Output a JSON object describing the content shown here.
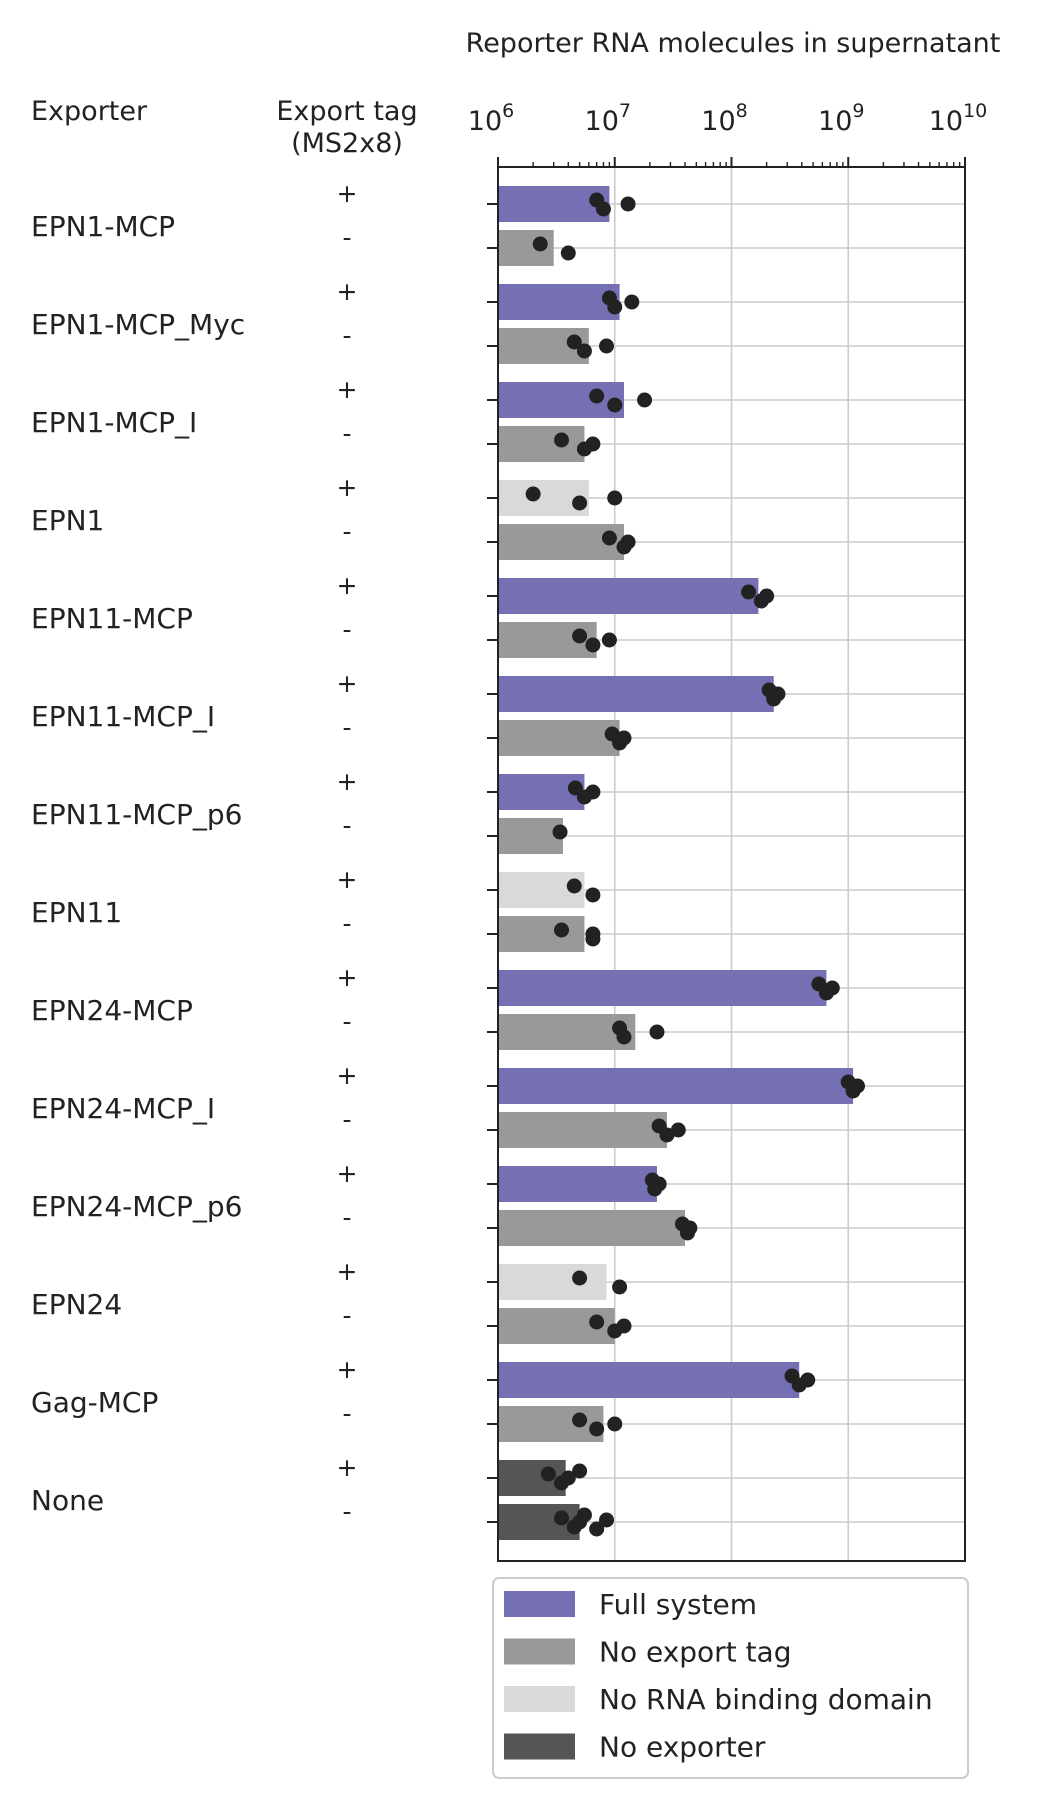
{
  "chart_data": {
    "type": "bar",
    "orientation": "horizontal",
    "title": "Reporter RNA molecules in supernatant",
    "row_header_left": "Exporter",
    "row_header_tag": [
      "Export tag",
      "(MS2x8)"
    ],
    "x_scale": "log",
    "xlim": [
      1000000,
      10000000000
    ],
    "x_tick_values": [
      1000000,
      10000000,
      100000000,
      1000000000,
      10000000000
    ],
    "x_tick_labels": [
      {
        "base": "10",
        "exp": "6"
      },
      {
        "base": "10",
        "exp": "7"
      },
      {
        "base": "10",
        "exp": "8"
      },
      {
        "base": "10",
        "exp": "9"
      },
      {
        "base": "10",
        "exp": "10"
      }
    ],
    "grid": true,
    "legend_position": "bottom",
    "legend": [
      {
        "key": "full",
        "label": "Full system",
        "color": "#7570b3"
      },
      {
        "key": "notag",
        "label": "No export tag",
        "color": "#999999"
      },
      {
        "key": "nordb",
        "label": "No RNA binding domain",
        "color": "#d9d9d9"
      },
      {
        "key": "noexp",
        "label": "No exporter",
        "color": "#555555"
      }
    ],
    "point_color": "#222222",
    "groups": [
      {
        "exporter": "EPN1-MCP",
        "bars": [
          {
            "tag": "+",
            "category": "full",
            "value": 9000000,
            "points": [
              7000000,
              8000000,
              13000000
            ]
          },
          {
            "tag": "-",
            "category": "notag",
            "value": 3000000,
            "points": [
              2300000,
              4000000
            ]
          }
        ]
      },
      {
        "exporter": "EPN1-MCP_Myc",
        "bars": [
          {
            "tag": "+",
            "category": "full",
            "value": 11000000,
            "points": [
              9000000,
              10000000,
              14000000
            ]
          },
          {
            "tag": "-",
            "category": "notag",
            "value": 6000000,
            "points": [
              4500000,
              5500000,
              8500000
            ]
          }
        ]
      },
      {
        "exporter": "EPN1-MCP_I",
        "bars": [
          {
            "tag": "+",
            "category": "full",
            "value": 12000000,
            "points": [
              7000000,
              10000000,
              18000000
            ]
          },
          {
            "tag": "-",
            "category": "notag",
            "value": 5500000,
            "points": [
              3500000,
              5500000,
              6500000
            ]
          }
        ]
      },
      {
        "exporter": "EPN1",
        "bars": [
          {
            "tag": "+",
            "category": "nordb",
            "value": 6000000,
            "points": [
              2000000,
              5000000,
              10000000
            ]
          },
          {
            "tag": "-",
            "category": "notag",
            "value": 12000000,
            "points": [
              9000000,
              12000000,
              13000000
            ]
          }
        ]
      },
      {
        "exporter": "EPN11-MCP",
        "bars": [
          {
            "tag": "+",
            "category": "full",
            "value": 170000000,
            "points": [
              140000000,
              180000000,
              200000000
            ]
          },
          {
            "tag": "-",
            "category": "notag",
            "value": 7000000,
            "points": [
              5000000,
              6500000,
              9000000
            ]
          }
        ]
      },
      {
        "exporter": "EPN11-MCP_I",
        "bars": [
          {
            "tag": "+",
            "category": "full",
            "value": 230000000,
            "points": [
              210000000,
              230000000,
              250000000
            ]
          },
          {
            "tag": "-",
            "category": "notag",
            "value": 11000000,
            "points": [
              9500000,
              11000000,
              12000000
            ]
          }
        ]
      },
      {
        "exporter": "EPN11-MCP_p6",
        "bars": [
          {
            "tag": "+",
            "category": "full",
            "value": 5500000,
            "points": [
              4600000,
              5500000,
              6500000
            ]
          },
          {
            "tag": "-",
            "category": "notag",
            "value": 3600000,
            "points": [
              3400000
            ]
          }
        ]
      },
      {
        "exporter": "EPN11",
        "bars": [
          {
            "tag": "+",
            "category": "nordb",
            "value": 5500000,
            "points": [
              4500000,
              6500000
            ]
          },
          {
            "tag": "-",
            "category": "notag",
            "value": 5500000,
            "points": [
              3500000,
              6500000,
              6500000
            ]
          }
        ]
      },
      {
        "exporter": "EPN24-MCP",
        "bars": [
          {
            "tag": "+",
            "category": "full",
            "value": 650000000,
            "points": [
              560000000,
              650000000,
              730000000
            ]
          },
          {
            "tag": "-",
            "category": "notag",
            "value": 15000000,
            "points": [
              11000000,
              12000000,
              23000000
            ]
          }
        ]
      },
      {
        "exporter": "EPN24-MCP_I",
        "bars": [
          {
            "tag": "+",
            "category": "full",
            "value": 1100000000,
            "points": [
              1000000000,
              1100000000,
              1200000000
            ]
          },
          {
            "tag": "-",
            "category": "notag",
            "value": 28000000,
            "points": [
              24000000,
              28000000,
              35000000
            ]
          }
        ]
      },
      {
        "exporter": "EPN24-MCP_p6",
        "bars": [
          {
            "tag": "+",
            "category": "full",
            "value": 23000000,
            "points": [
              21000000,
              22000000,
              24000000
            ]
          },
          {
            "tag": "-",
            "category": "notag",
            "value": 40000000,
            "points": [
              38000000,
              42000000,
              44000000
            ]
          }
        ]
      },
      {
        "exporter": "EPN24",
        "bars": [
          {
            "tag": "+",
            "category": "nordb",
            "value": 8500000,
            "points": [
              5000000,
              11000000
            ]
          },
          {
            "tag": "-",
            "category": "notag",
            "value": 10000000,
            "points": [
              7000000,
              10000000,
              12000000
            ]
          }
        ]
      },
      {
        "exporter": "Gag-MCP",
        "bars": [
          {
            "tag": "+",
            "category": "full",
            "value": 380000000,
            "points": [
              330000000,
              380000000,
              450000000
            ]
          },
          {
            "tag": "-",
            "category": "notag",
            "value": 8000000,
            "points": [
              5000000,
              7000000,
              10000000
            ]
          }
        ]
      },
      {
        "exporter": "None",
        "bars": [
          {
            "tag": "+",
            "category": "noexp",
            "value": 3800000,
            "points": [
              2700000,
              3500000,
              4000000,
              5000000
            ]
          },
          {
            "tag": "-",
            "category": "noexp",
            "value": 5000000,
            "points": [
              3500000,
              4500000,
              5000000,
              5500000,
              7000000,
              8500000
            ]
          }
        ]
      }
    ]
  }
}
